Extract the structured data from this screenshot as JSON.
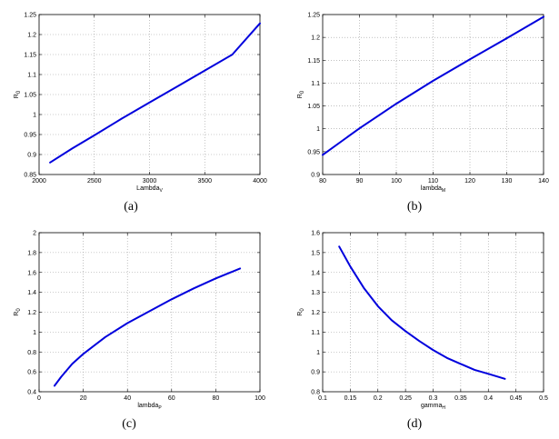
{
  "colors": {
    "curve": "#0000dd"
  },
  "chart_data": [
    {
      "type": "line",
      "caption": "(a)",
      "xlabel": "Lambda",
      "xlabel_sub": "V",
      "ylabel": "R",
      "ylabel_sub": "0",
      "xlim": [
        2000,
        4000
      ],
      "ylim": [
        0.85,
        1.25
      ],
      "xticks": [
        2000,
        2500,
        3000,
        3500,
        4000
      ],
      "yticks": [
        0.85,
        0.9,
        0.95,
        1,
        1.05,
        1.1,
        1.15,
        1.2,
        1.25
      ],
      "xtick_labels": [
        "2000",
        "2500",
        "3000",
        "3500",
        "4000"
      ],
      "ytick_labels": [
        "0.85",
        "0.9",
        "0.95",
        "1",
        "1.05",
        "1.1",
        "1.15",
        "1.2",
        "1.25"
      ],
      "series": [
        {
          "x": [
            2100,
            2300,
            2500,
            2750,
            3000,
            3250,
            3500,
            3750,
            4000
          ],
          "y": [
            0.88,
            0.915,
            0.948,
            0.99,
            1.03,
            1.07,
            1.11,
            1.15,
            1.228
          ]
        }
      ]
    },
    {
      "type": "line",
      "caption": "(b)",
      "xlabel": "lambda",
      "xlabel_sub": "M",
      "ylabel": "R",
      "ylabel_sub": "0",
      "xlim": [
        80,
        140
      ],
      "ylim": [
        0.9,
        1.25
      ],
      "xticks": [
        80,
        90,
        100,
        110,
        120,
        130,
        140
      ],
      "yticks": [
        0.9,
        0.95,
        1,
        1.05,
        1.1,
        1.15,
        1.2,
        1.25
      ],
      "xtick_labels": [
        "80",
        "90",
        "100",
        "110",
        "120",
        "130",
        "140"
      ],
      "ytick_labels": [
        "0.9",
        "0.95",
        "1",
        "1.05",
        "1.1",
        "1.15",
        "1.2",
        "1.25"
      ],
      "series": [
        {
          "x": [
            80,
            90,
            100,
            110,
            120,
            130,
            140
          ],
          "y": [
            0.943,
            1.001,
            1.055,
            1.105,
            1.152,
            1.198,
            1.245
          ]
        }
      ]
    },
    {
      "type": "line",
      "caption": "(c)",
      "xlabel": "lambda",
      "xlabel_sub": "P",
      "ylabel": "R",
      "ylabel_sub": "0",
      "xlim": [
        0,
        100
      ],
      "ylim": [
        0.4,
        2
      ],
      "xticks": [
        0,
        20,
        40,
        60,
        80,
        100
      ],
      "yticks": [
        0.4,
        0.6,
        0.8,
        1,
        1.2,
        1.4,
        1.6,
        1.8,
        2
      ],
      "xtick_labels": [
        "0",
        "20",
        "40",
        "60",
        "80",
        "100"
      ],
      "ytick_labels": [
        "0.4",
        "0.6",
        "0.8",
        "1",
        "1.2",
        "1.4",
        "1.6",
        "1.8",
        "2"
      ],
      "series": [
        {
          "x": [
            7,
            10,
            15,
            20,
            30,
            40,
            50,
            60,
            70,
            80,
            91
          ],
          "y": [
            0.46,
            0.55,
            0.68,
            0.78,
            0.95,
            1.09,
            1.21,
            1.33,
            1.44,
            1.54,
            1.64
          ]
        }
      ]
    },
    {
      "type": "line",
      "caption": "(d)",
      "xlabel": "gamma",
      "xlabel_sub": "H",
      "ylabel": "R",
      "ylabel_sub": "0",
      "xlim": [
        0.1,
        0.5
      ],
      "ylim": [
        0.8,
        1.6
      ],
      "xticks": [
        0.1,
        0.15,
        0.2,
        0.25,
        0.3,
        0.35,
        0.4,
        0.45,
        0.5
      ],
      "yticks": [
        0.8,
        0.9,
        1,
        1.1,
        1.2,
        1.3,
        1.4,
        1.5,
        1.6
      ],
      "xtick_labels": [
        "0.1",
        "0.15",
        "0.2",
        "0.25",
        "0.3",
        "0.35",
        "0.4",
        "0.45",
        "0.5"
      ],
      "ytick_labels": [
        "0.8",
        "0.9",
        "1",
        "1.1",
        "1.2",
        "1.3",
        "1.4",
        "1.5",
        "1.6"
      ],
      "series": [
        {
          "x": [
            0.13,
            0.15,
            0.175,
            0.2,
            0.225,
            0.25,
            0.275,
            0.3,
            0.325,
            0.35,
            0.375,
            0.4,
            0.43
          ],
          "y": [
            1.53,
            1.43,
            1.32,
            1.23,
            1.16,
            1.105,
            1.055,
            1.01,
            0.97,
            0.94,
            0.91,
            0.89,
            0.865
          ]
        }
      ]
    }
  ]
}
